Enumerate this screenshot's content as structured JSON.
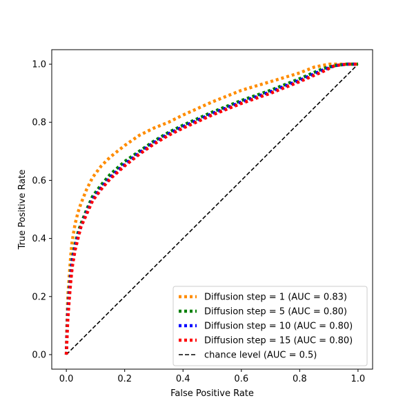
{
  "chart_data": {
    "type": "line",
    "title": "",
    "xlabel": "False Positive Rate",
    "ylabel": "True Positive Rate",
    "xlim": [
      -0.05,
      1.05
    ],
    "ylim": [
      -0.05,
      1.05
    ],
    "xticks": [
      0.0,
      0.2,
      0.4,
      0.6,
      0.8,
      1.0
    ],
    "yticks": [
      0.0,
      0.2,
      0.4,
      0.6,
      0.8,
      1.0
    ],
    "xtick_labels": [
      "0.0",
      "0.2",
      "0.4",
      "0.6",
      "0.8",
      "1.0"
    ],
    "ytick_labels": [
      "0.0",
      "0.2",
      "0.4",
      "0.6",
      "0.8",
      "1.0"
    ],
    "grid": false,
    "legend_position": "lower-right",
    "series": [
      {
        "name": "Diffusion step = 1 (AUC = 0.83)",
        "color": "#ff8c00",
        "style": "dotted",
        "x": [
          0.0,
          0.002,
          0.005,
          0.01,
          0.015,
          0.02,
          0.03,
          0.04,
          0.05,
          0.07,
          0.09,
          0.12,
          0.15,
          0.2,
          0.25,
          0.3,
          0.35,
          0.4,
          0.5,
          0.6,
          0.7,
          0.8,
          0.85,
          0.9,
          0.95,
          1.0
        ],
        "y": [
          0.0,
          0.1,
          0.2,
          0.27,
          0.34,
          0.39,
          0.45,
          0.49,
          0.52,
          0.57,
          0.61,
          0.65,
          0.68,
          0.72,
          0.755,
          0.78,
          0.8,
          0.825,
          0.87,
          0.91,
          0.94,
          0.97,
          0.99,
          1.0,
          1.0,
          1.0
        ]
      },
      {
        "name": "Diffusion step = 5 (AUC = 0.80)",
        "color": "#008000",
        "style": "dotted",
        "x": [
          0.0,
          0.002,
          0.005,
          0.01,
          0.015,
          0.02,
          0.03,
          0.04,
          0.05,
          0.07,
          0.09,
          0.12,
          0.15,
          0.2,
          0.25,
          0.3,
          0.35,
          0.4,
          0.5,
          0.6,
          0.7,
          0.8,
          0.88,
          0.92,
          0.96,
          1.0
        ],
        "y": [
          0.0,
          0.07,
          0.15,
          0.22,
          0.28,
          0.33,
          0.38,
          0.42,
          0.45,
          0.5,
          0.545,
          0.585,
          0.62,
          0.665,
          0.7,
          0.735,
          0.765,
          0.79,
          0.835,
          0.875,
          0.91,
          0.95,
          0.985,
          0.995,
          1.0,
          1.0
        ]
      },
      {
        "name": "Diffusion step = 10 (AUC = 0.80)",
        "color": "#0000ff",
        "style": "dotted",
        "x": [
          0.0,
          0.002,
          0.005,
          0.01,
          0.015,
          0.02,
          0.03,
          0.04,
          0.05,
          0.07,
          0.09,
          0.12,
          0.15,
          0.2,
          0.25,
          0.3,
          0.35,
          0.4,
          0.5,
          0.6,
          0.7,
          0.8,
          0.88,
          0.92,
          0.96,
          1.0
        ],
        "y": [
          0.0,
          0.06,
          0.14,
          0.21,
          0.27,
          0.32,
          0.37,
          0.41,
          0.44,
          0.49,
          0.535,
          0.575,
          0.61,
          0.655,
          0.695,
          0.73,
          0.76,
          0.785,
          0.83,
          0.87,
          0.905,
          0.945,
          0.98,
          0.995,
          1.0,
          1.0
        ]
      },
      {
        "name": "Diffusion step = 15 (AUC = 0.80)",
        "color": "#ff0000",
        "style": "dotted",
        "x": [
          0.0,
          0.002,
          0.005,
          0.01,
          0.015,
          0.02,
          0.03,
          0.04,
          0.05,
          0.07,
          0.09,
          0.12,
          0.15,
          0.2,
          0.25,
          0.3,
          0.35,
          0.4,
          0.5,
          0.6,
          0.7,
          0.8,
          0.88,
          0.92,
          0.96,
          1.0
        ],
        "y": [
          0.0,
          0.05,
          0.12,
          0.19,
          0.25,
          0.3,
          0.36,
          0.4,
          0.44,
          0.485,
          0.53,
          0.57,
          0.605,
          0.65,
          0.69,
          0.725,
          0.755,
          0.78,
          0.825,
          0.865,
          0.9,
          0.94,
          0.975,
          0.995,
          1.0,
          1.0
        ]
      },
      {
        "name": "chance level (AUC = 0.5)",
        "color": "#000000",
        "style": "dashed",
        "x": [
          0.0,
          1.0
        ],
        "y": [
          0.0,
          1.0
        ]
      }
    ]
  }
}
